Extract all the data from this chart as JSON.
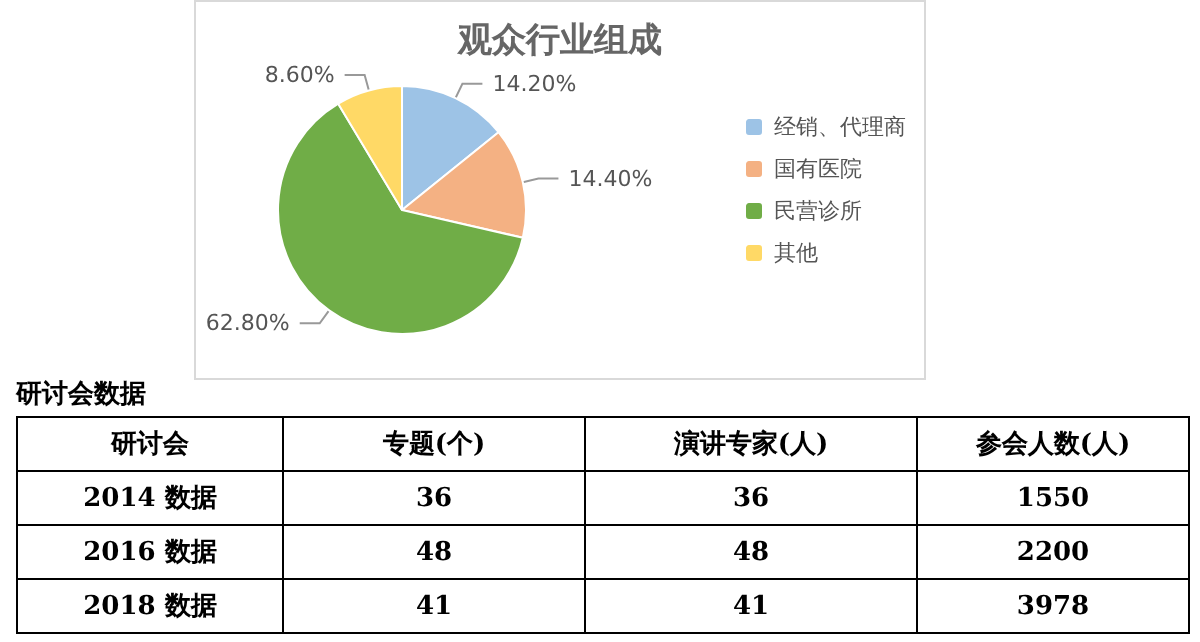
{
  "chart_data": [
    {
      "type": "pie",
      "title": "观众行业组成",
      "categories": [
        "经销、代理商",
        "国有医院",
        "民营诊所",
        "其他"
      ],
      "values": [
        14.2,
        14.4,
        62.8,
        8.6
      ],
      "colors": [
        "#9dc3e6",
        "#f4b183",
        "#70ad47",
        "#ffd966"
      ],
      "value_labels": [
        "14.20%",
        "14.40%",
        "62.80%",
        "8.60%"
      ],
      "legend": "right"
    },
    {
      "type": "heatmap",
      "title": "研讨会数据",
      "ylabel": "研讨会",
      "categories": [
        "专题(个)",
        "演讲专家(人)",
        "参会人数(人)"
      ],
      "y_categories": [
        "2014 数据",
        "2016 数据",
        "2018 数据"
      ],
      "cells": [
        [
          36,
          36,
          1550
        ],
        [
          48,
          48,
          2200
        ],
        [
          41,
          41,
          3978
        ]
      ],
      "data_labels": true
    }
  ]
}
